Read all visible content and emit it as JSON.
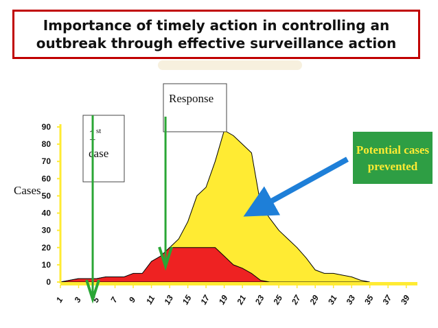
{
  "slide": {
    "title": "Importance of timely action in controlling an outbreak through effective surveillance action",
    "colors": {
      "title_border": "#c00000",
      "background": "#ffffff",
      "watermark": "#f3ead0"
    }
  },
  "chart_data": {
    "type": "area",
    "ylabel": "Cases",
    "ylim": [
      0,
      90
    ],
    "y_ticks": [
      "0",
      "10",
      "20",
      "30",
      "40",
      "50",
      "60",
      "70",
      "80",
      "90"
    ],
    "x_ticks": [
      "1",
      "3",
      "5",
      "7",
      "9",
      "11",
      "13",
      "15",
      "17",
      "19",
      "21",
      "23",
      "25",
      "27",
      "29",
      "31",
      "33",
      "35",
      "37",
      "39"
    ],
    "grid": false,
    "series": [
      {
        "role": "no-response",
        "color": "#ffeb33",
        "x": [
          1,
          2,
          3,
          4,
          5,
          6,
          7,
          8,
          9,
          10,
          11,
          12,
          13,
          14,
          15,
          16,
          17,
          18,
          19,
          20,
          21,
          22,
          23,
          24,
          25,
          26,
          27,
          28,
          29,
          30,
          31,
          32,
          33,
          34,
          35
        ],
        "values": [
          0,
          1,
          2,
          2,
          2,
          3,
          3,
          3,
          4,
          5,
          10,
          15,
          20,
          25,
          35,
          50,
          55,
          70,
          88,
          85,
          80,
          75,
          45,
          37,
          30,
          25,
          20,
          14,
          7,
          5,
          5,
          4,
          3,
          1,
          0
        ]
      },
      {
        "role": "with-response",
        "color": "#ee2222",
        "x": [
          1,
          2,
          3,
          4,
          5,
          6,
          7,
          8,
          9,
          10,
          11,
          12,
          13,
          14,
          15,
          16,
          17,
          18,
          19,
          20,
          21,
          22,
          23,
          24
        ],
        "values": [
          0,
          1,
          2,
          2,
          2,
          3,
          3,
          3,
          5,
          5,
          12,
          15,
          20,
          20,
          20,
          20,
          20,
          20,
          15,
          10,
          8,
          5,
          1,
          0
        ]
      }
    ],
    "annotations": {
      "first_case": {
        "label": "1",
        "sup": "st",
        "label2": "case",
        "x": 5
      },
      "response": {
        "label": "Response",
        "x": 13
      },
      "prevented": {
        "label1": "Potential cases",
        "label2": "prevented",
        "color": "#2e9e44",
        "arrow_color": "#1e7fd8"
      }
    },
    "colors": {
      "axis": "#ffeb33",
      "marker_arrow": "#2aa635",
      "outline": "#000000"
    }
  }
}
